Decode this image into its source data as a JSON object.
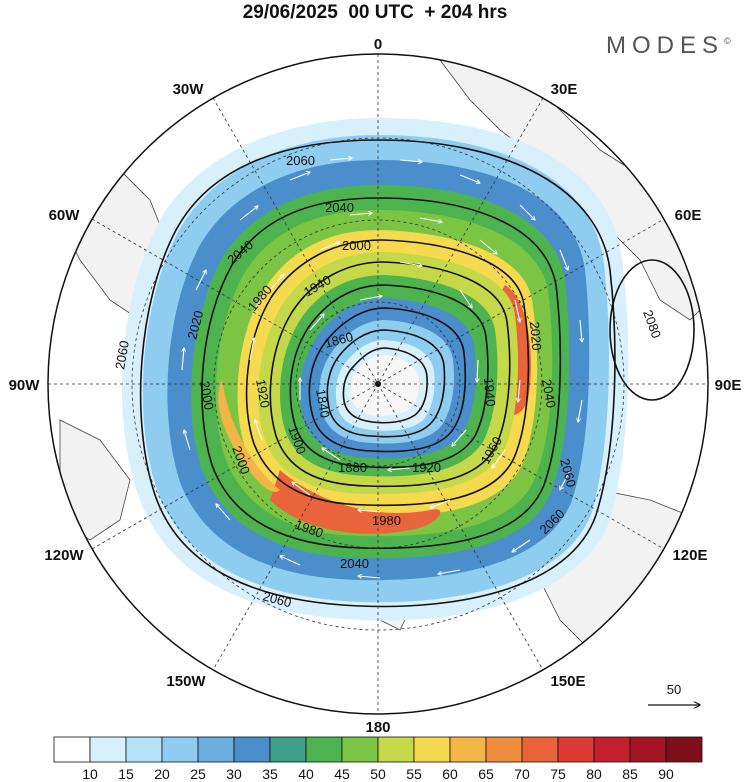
{
  "title": "29/06/2025  00 UTC  + 204 hrs",
  "brand": {
    "name": "MODES",
    "mark": "©"
  },
  "longitude_labels": [
    "0",
    "30E",
    "60E",
    "90E",
    "120E",
    "150E",
    "180",
    "150W",
    "120W",
    "90W",
    "60W",
    "30W"
  ],
  "contour_labels": [
    "2080",
    "2060",
    "2060",
    "2060",
    "2060",
    "2060",
    "2040",
    "2040",
    "2040",
    "2040",
    "2020",
    "2020",
    "2000",
    "2000",
    "2000",
    "1980",
    "1980",
    "1980",
    "1960",
    "1940",
    "1940",
    "1920",
    "1920",
    "1900",
    "1880",
    "1860",
    "1840"
  ],
  "reference_vector": {
    "value": "50"
  },
  "colorbar": {
    "ticks": [
      "10",
      "15",
      "20",
      "25",
      "30",
      "35",
      "40",
      "45",
      "50",
      "55",
      "60",
      "65",
      "70",
      "75",
      "80",
      "85",
      "90"
    ],
    "colors": [
      "#ffffff",
      "#d8f0fb",
      "#b4e2f7",
      "#8fcdf0",
      "#6aaee0",
      "#4a8fcc",
      "#3f9f8a",
      "#4db34e",
      "#7cc443",
      "#c4d84a",
      "#f5d94f",
      "#f4b548",
      "#ef8e3c",
      "#e9643a",
      "#dd3a33",
      "#c41f2e",
      "#a31424",
      "#7f0f1b"
    ]
  }
}
